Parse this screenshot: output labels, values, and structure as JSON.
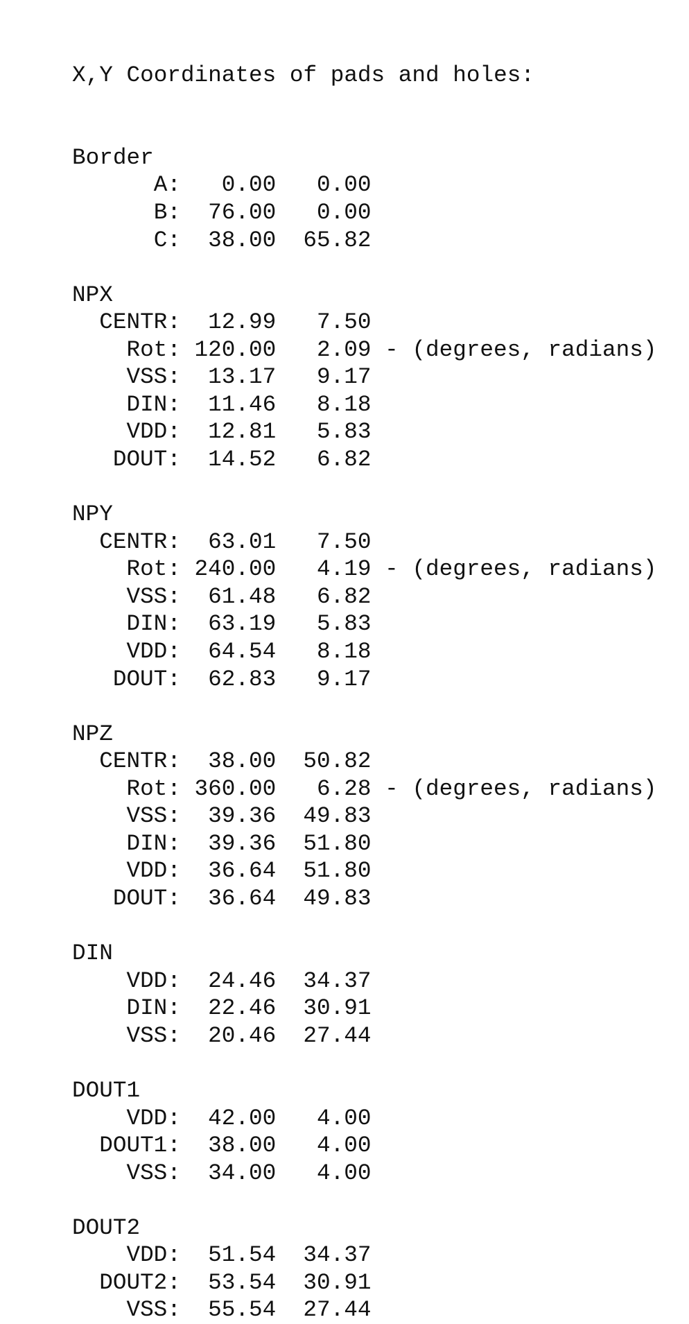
{
  "title": "X,Y Coordinates of pads and holes:",
  "sections": [
    {
      "name": "Border",
      "rows": [
        {
          "label": "A:",
          "x": "0.00",
          "y": "0.00"
        },
        {
          "label": "B:",
          "x": "76.00",
          "y": "0.00"
        },
        {
          "label": "C:",
          "x": "38.00",
          "y": "65.82"
        }
      ]
    },
    {
      "name": "NPX",
      "rows": [
        {
          "label": "CENTR:",
          "x": "12.99",
          "y": "7.50"
        },
        {
          "label": "Rot:",
          "x": "120.00",
          "y": "2.09",
          "note": "- (degrees, radians)"
        },
        {
          "label": "VSS:",
          "x": "13.17",
          "y": "9.17"
        },
        {
          "label": "DIN:",
          "x": "11.46",
          "y": "8.18"
        },
        {
          "label": "VDD:",
          "x": "12.81",
          "y": "5.83"
        },
        {
          "label": "DOUT:",
          "x": "14.52",
          "y": "6.82"
        }
      ]
    },
    {
      "name": "NPY",
      "rows": [
        {
          "label": "CENTR:",
          "x": "63.01",
          "y": "7.50"
        },
        {
          "label": "Rot:",
          "x": "240.00",
          "y": "4.19",
          "note": "- (degrees, radians)"
        },
        {
          "label": "VSS:",
          "x": "61.48",
          "y": "6.82"
        },
        {
          "label": "DIN:",
          "x": "63.19",
          "y": "5.83"
        },
        {
          "label": "VDD:",
          "x": "64.54",
          "y": "8.18"
        },
        {
          "label": "DOUT:",
          "x": "62.83",
          "y": "9.17"
        }
      ]
    },
    {
      "name": "NPZ",
      "rows": [
        {
          "label": "CENTR:",
          "x": "38.00",
          "y": "50.82"
        },
        {
          "label": "Rot:",
          "x": "360.00",
          "y": "6.28",
          "note": "- (degrees, radians)"
        },
        {
          "label": "VSS:",
          "x": "39.36",
          "y": "49.83"
        },
        {
          "label": "DIN:",
          "x": "39.36",
          "y": "51.80"
        },
        {
          "label": "VDD:",
          "x": "36.64",
          "y": "51.80"
        },
        {
          "label": "DOUT:",
          "x": "36.64",
          "y": "49.83"
        }
      ]
    },
    {
      "name": "DIN",
      "rows": [
        {
          "label": "VDD:",
          "x": "24.46",
          "y": "34.37"
        },
        {
          "label": "DIN:",
          "x": "22.46",
          "y": "30.91"
        },
        {
          "label": "VSS:",
          "x": "20.46",
          "y": "27.44"
        }
      ]
    },
    {
      "name": "DOUT1",
      "rows": [
        {
          "label": "VDD:",
          "x": "42.00",
          "y": "4.00"
        },
        {
          "label": "DOUT1:",
          "x": "38.00",
          "y": "4.00"
        },
        {
          "label": "VSS:",
          "x": "34.00",
          "y": "4.00"
        }
      ]
    },
    {
      "name": "DOUT2",
      "rows": [
        {
          "label": "VDD:",
          "x": "51.54",
          "y": "34.37"
        },
        {
          "label": "DOUT2:",
          "x": "53.54",
          "y": "30.91"
        },
        {
          "label": "VSS:",
          "x": "55.54",
          "y": "27.44"
        }
      ]
    }
  ]
}
